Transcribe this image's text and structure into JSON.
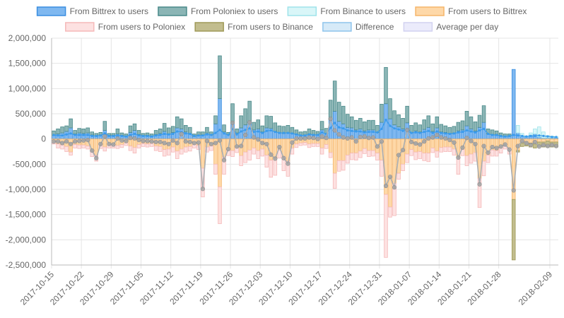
{
  "chart_data": {
    "type": "bar",
    "subtype": "stacked bar with line overlays",
    "title": "",
    "xlabel": "",
    "ylabel": "",
    "ylim": [
      -2500000,
      2000000
    ],
    "y_ticks": [
      "2,000,000",
      "1,500,000",
      "1,000,000",
      "500,000",
      "0",
      "-500,000",
      "-1,000,000",
      "-1,500,000",
      "-2,000,000",
      "-2,500,000"
    ],
    "y_tick_values": [
      2000000,
      1500000,
      1000000,
      500000,
      0,
      -500000,
      -1000000,
      -1500000,
      -2000000,
      -2500000
    ],
    "x_tick_labels": [
      "2017-10-15",
      "2017-10-22",
      "2017-10-29",
      "2017-11-05",
      "2017-11-12",
      "2017-11-19",
      "2017-11-26",
      "2017-12-03",
      "2017-12-10",
      "2017-12-17",
      "2017-12-24",
      "2017-12-31",
      "2018-01-07",
      "2018-01-14",
      "2018-01-21",
      "2018-01-28",
      "2018-02-09"
    ],
    "x_tick_day_index": [
      0,
      7,
      14,
      21,
      28,
      35,
      42,
      49,
      56,
      63,
      70,
      77,
      84,
      91,
      98,
      105,
      117
    ],
    "grid": true,
    "legend_position": "top",
    "legend": [
      {
        "label": "From Bittrex to users",
        "fill": "#7fb8f0",
        "stroke": "#3a8ee0"
      },
      {
        "label": "From Poloniex to users",
        "fill": "#8bb5b5",
        "stroke": "#4a8a8a"
      },
      {
        "label": "From Binance to users",
        "fill": "#d9f6f8",
        "stroke": "#9fe3ea"
      },
      {
        "label": "From users to Bittrex",
        "fill": "#fed8a8",
        "stroke": "#f5b56a"
      },
      {
        "label": "From users to Poloniex",
        "fill": "#fde1e1",
        "stroke": "#f5b9b9"
      },
      {
        "label": "From users to Binance",
        "fill": "#c2bd8e",
        "stroke": "#a09a58"
      },
      {
        "label": "Difference",
        "fill": "#d6eaf8",
        "stroke": "#8ec4ec"
      },
      {
        "label": "Average per day",
        "fill": "#ebebfb",
        "stroke": "#d2d2f0"
      }
    ],
    "colors": {
      "bittrex_out": "#5aa7ee",
      "poloniex_out": "#68a3a3",
      "binance_out": "#c9f0f4",
      "bittrex_in": "#fdcf94",
      "poloniex_in": "#fbd3d3",
      "binance_in": "#9d9a5e",
      "difference_line": "#a9aeb2",
      "difference_point": "#a3a3a3",
      "average_line": "#3a9bec",
      "grid": "#e5e5e5",
      "axis": "#bbbbbb"
    },
    "days": 119,
    "series": [
      {
        "name": "From Bittrex to users",
        "values": [
          70000,
          100000,
          120000,
          150000,
          220000,
          100000,
          120000,
          110000,
          120000,
          80000,
          60000,
          80000,
          170000,
          70000,
          70000,
          100000,
          70000,
          60000,
          130000,
          170000,
          90000,
          60000,
          70000,
          60000,
          90000,
          110000,
          150000,
          100000,
          130000,
          220000,
          200000,
          140000,
          110000,
          50000,
          70000,
          80000,
          120000,
          80000,
          300000,
          800000,
          140000,
          90000,
          320000,
          120000,
          220000,
          280000,
          350000,
          180000,
          200000,
          140000,
          220000,
          210000,
          150000,
          120000,
          110000,
          120000,
          110000,
          90000,
          70000,
          80000,
          100000,
          90000,
          80000,
          180000,
          110000,
          380000,
          550000,
          350000,
          300000,
          230000,
          220000,
          180000,
          200000,
          160000,
          180000,
          180000,
          130000,
          330000,
          700000,
          400000,
          280000,
          240000,
          200000,
          320000,
          130000,
          160000,
          140000,
          190000,
          230000,
          150000,
          220000,
          140000,
          130000,
          110000,
          120000,
          160000,
          180000,
          260000,
          200000,
          160000,
          230000,
          330000,
          100000,
          90000,
          80000,
          60000,
          50000,
          50000,
          1380000,
          120000,
          50000,
          40000,
          80000,
          100000,
          40000,
          20000,
          20000,
          20000,
          30000
        ]
      },
      {
        "name": "From Poloniex to users",
        "values": [
          90000,
          100000,
          120000,
          110000,
          180000,
          70000,
          90000,
          90000,
          100000,
          60000,
          50000,
          50000,
          180000,
          40000,
          40000,
          100000,
          50000,
          40000,
          130000,
          130000,
          80000,
          50000,
          50000,
          40000,
          80000,
          90000,
          160000,
          120000,
          120000,
          220000,
          200000,
          130000,
          120000,
          50000,
          70000,
          60000,
          110000,
          60000,
          160000,
          850000,
          140000,
          40000,
          380000,
          80000,
          240000,
          320000,
          400000,
          150000,
          180000,
          120000,
          240000,
          240000,
          170000,
          140000,
          140000,
          150000,
          120000,
          90000,
          70000,
          70000,
          100000,
          80000,
          70000,
          170000,
          100000,
          390000,
          600000,
          380000,
          350000,
          260000,
          220000,
          190000,
          210000,
          180000,
          190000,
          190000,
          140000,
          360000,
          720000,
          400000,
          280000,
          240000,
          210000,
          330000,
          140000,
          160000,
          140000,
          190000,
          230000,
          150000,
          220000,
          150000,
          130000,
          120000,
          130000,
          170000,
          180000,
          290000,
          240000,
          180000,
          240000,
          330000,
          100000,
          90000,
          80000,
          60000,
          50000,
          50000,
          0,
          0,
          0,
          0,
          0,
          0,
          0,
          0,
          0,
          0,
          0
        ]
      },
      {
        "name": "From Binance to users",
        "values": [
          0,
          0,
          0,
          0,
          0,
          0,
          0,
          0,
          0,
          0,
          0,
          0,
          0,
          0,
          0,
          0,
          0,
          0,
          0,
          0,
          0,
          0,
          0,
          0,
          0,
          0,
          0,
          0,
          0,
          0,
          0,
          0,
          0,
          0,
          0,
          0,
          0,
          0,
          0,
          0,
          0,
          0,
          0,
          0,
          0,
          0,
          0,
          0,
          0,
          0,
          0,
          0,
          0,
          0,
          0,
          0,
          0,
          0,
          0,
          0,
          0,
          0,
          0,
          0,
          0,
          0,
          0,
          0,
          0,
          0,
          0,
          0,
          0,
          0,
          0,
          0,
          0,
          0,
          0,
          0,
          0,
          0,
          0,
          0,
          0,
          0,
          0,
          0,
          0,
          0,
          0,
          0,
          0,
          0,
          0,
          0,
          0,
          0,
          0,
          0,
          0,
          0,
          0,
          0,
          0,
          0,
          0,
          0,
          0,
          150000,
          60000,
          20000,
          40000,
          100000,
          200000,
          120000,
          50000,
          40000,
          20000
        ]
      },
      {
        "name": "From users to Bittrex",
        "values": [
          -60000,
          -100000,
          -120000,
          -150000,
          -260000,
          -110000,
          -120000,
          -120000,
          -140000,
          -250000,
          -320000,
          -120000,
          -160000,
          -120000,
          -120000,
          -130000,
          -110000,
          -80000,
          -140000,
          -170000,
          -110000,
          -90000,
          -100000,
          -90000,
          -140000,
          -150000,
          -210000,
          -200000,
          -160000,
          -240000,
          -200000,
          -160000,
          -150000,
          -110000,
          -130000,
          -580000,
          -160000,
          -140000,
          -500000,
          -950000,
          -360000,
          -220000,
          -230000,
          -180000,
          -330000,
          -260000,
          -220000,
          -180000,
          -230000,
          -200000,
          -320000,
          -420000,
          -380000,
          -220000,
          -350000,
          -440000,
          -180000,
          -100000,
          -80000,
          -70000,
          -100000,
          -90000,
          -90000,
          -180000,
          -110000,
          -270000,
          -680000,
          -430000,
          -430000,
          -320000,
          -280000,
          -280000,
          -240000,
          -190000,
          -230000,
          -230000,
          -280000,
          -420000,
          -1100000,
          -1350000,
          -880000,
          -680000,
          -500000,
          -300000,
          -210000,
          -260000,
          -250000,
          -280000,
          -280000,
          -180000,
          -240000,
          -170000,
          -160000,
          -160000,
          -200000,
          -370000,
          -210000,
          -330000,
          -300000,
          -270000,
          -780000,
          -440000,
          -320000,
          -220000,
          -230000,
          -180000,
          -120000,
          -180000,
          -1200000,
          -230000,
          -80000,
          -60000,
          -80000,
          -100000,
          -60000,
          -60000,
          -40000,
          -60000,
          -60000
        ]
      },
      {
        "name": "From users to Poloniex",
        "values": [
          -40000,
          -80000,
          -80000,
          -100000,
          -60000,
          -70000,
          -70000,
          -60000,
          -60000,
          -100000,
          -120000,
          -70000,
          -80000,
          -60000,
          -60000,
          -60000,
          -60000,
          -50000,
          -90000,
          -110000,
          -70000,
          -60000,
          -60000,
          -60000,
          -90000,
          -100000,
          -130000,
          -120000,
          -100000,
          -150000,
          -100000,
          -100000,
          -90000,
          -70000,
          -80000,
          -570000,
          -100000,
          -90000,
          -200000,
          -730000,
          -340000,
          -110000,
          -120000,
          -90000,
          -200000,
          -210000,
          -200000,
          -120000,
          -160000,
          -140000,
          -240000,
          -340000,
          -340000,
          -160000,
          -280000,
          -300000,
          -120000,
          -70000,
          -50000,
          -50000,
          -70000,
          -60000,
          -60000,
          -120000,
          -80000,
          -100000,
          -300000,
          -210000,
          -190000,
          -160000,
          -130000,
          -140000,
          -130000,
          -100000,
          -120000,
          -110000,
          -140000,
          -320000,
          -1250000,
          -200000,
          -640000,
          -120000,
          -130000,
          -170000,
          -120000,
          -150000,
          -140000,
          -150000,
          -170000,
          -90000,
          -120000,
          -90000,
          -90000,
          -90000,
          -120000,
          -330000,
          -120000,
          -200000,
          -180000,
          -170000,
          -580000,
          -290000,
          -150000,
          -120000,
          -110000,
          -100000,
          -80000,
          -120000,
          0,
          0,
          0,
          0,
          0,
          0,
          0,
          0,
          0,
          0,
          0
        ]
      },
      {
        "name": "From users to Binance",
        "values": [
          0,
          0,
          0,
          0,
          0,
          0,
          0,
          0,
          0,
          0,
          0,
          0,
          0,
          0,
          0,
          0,
          0,
          0,
          0,
          0,
          0,
          0,
          0,
          0,
          0,
          0,
          0,
          0,
          0,
          0,
          0,
          0,
          0,
          0,
          0,
          0,
          0,
          0,
          0,
          0,
          0,
          0,
          0,
          0,
          0,
          0,
          0,
          0,
          0,
          0,
          0,
          0,
          0,
          0,
          0,
          0,
          0,
          0,
          0,
          0,
          0,
          0,
          0,
          0,
          0,
          0,
          0,
          0,
          0,
          0,
          0,
          0,
          0,
          0,
          0,
          0,
          0,
          0,
          0,
          0,
          0,
          0,
          0,
          0,
          0,
          0,
          0,
          0,
          0,
          0,
          0,
          0,
          0,
          0,
          0,
          0,
          0,
          0,
          0,
          0,
          0,
          0,
          0,
          0,
          0,
          0,
          0,
          0,
          -1200000,
          -30000,
          -70000,
          -80000,
          -80000,
          -80000,
          -90000,
          -100000,
          -120000,
          -100000,
          -100000
        ]
      },
      {
        "name": "Difference",
        "values": [
          -50000,
          -50000,
          -80000,
          -50000,
          -100000,
          -50000,
          -40000,
          -30000,
          -20000,
          -230000,
          -380000,
          -100000,
          50000,
          -100000,
          -110000,
          10000,
          -30000,
          -40000,
          20000,
          10000,
          -20000,
          -40000,
          -40000,
          -50000,
          -60000,
          -60000,
          -80000,
          -100000,
          -30000,
          -80000,
          100000,
          -50000,
          -60000,
          -80000,
          -70000,
          -990000,
          -40000,
          -100000,
          -80000,
          -30000,
          -420000,
          -200000,
          320000,
          -150000,
          -140000,
          80000,
          330000,
          30000,
          -10000,
          -80000,
          -100000,
          -310000,
          -390000,
          -160000,
          -380000,
          -490000,
          -70000,
          10000,
          10000,
          10000,
          30000,
          20000,
          0,
          50000,
          20000,
          400000,
          170000,
          90000,
          30000,
          10000,
          30000,
          -50000,
          40000,
          50000,
          20000,
          30000,
          -150000,
          -50000,
          -930000,
          -750000,
          -960000,
          -320000,
          -220000,
          180000,
          -60000,
          -90000,
          -110000,
          -50000,
          10000,
          30000,
          80000,
          30000,
          10000,
          -20000,
          -70000,
          -370000,
          -170000,
          20000,
          -40000,
          -100000,
          -900000,
          -140000,
          -270000,
          -160000,
          -180000,
          -150000,
          -110000,
          -210000,
          -1020000,
          -140000,
          -40000,
          -80000,
          -120000,
          -60000,
          -150000,
          -120000,
          -140000,
          -120000,
          -140000
        ]
      },
      {
        "name": "Average per day",
        "values": [
          80000,
          70000,
          70000,
          90000,
          110000,
          80000,
          80000,
          80000,
          80000,
          60000,
          60000,
          70000,
          110000,
          60000,
          60000,
          70000,
          60000,
          50000,
          80000,
          100000,
          70000,
          60000,
          60000,
          50000,
          70000,
          80000,
          100000,
          90000,
          100000,
          150000,
          140000,
          110000,
          100000,
          60000,
          70000,
          70000,
          90000,
          80000,
          120000,
          180000,
          110000,
          80000,
          200000,
          90000,
          150000,
          180000,
          210000,
          140000,
          150000,
          120000,
          160000,
          170000,
          140000,
          120000,
          120000,
          120000,
          110000,
          90000,
          70000,
          70000,
          90000,
          80000,
          80000,
          130000,
          100000,
          220000,
          320000,
          230000,
          210000,
          170000,
          160000,
          150000,
          150000,
          130000,
          140000,
          140000,
          130000,
          200000,
          380000,
          260000,
          210000,
          190000,
          160000,
          200000,
          120000,
          130000,
          120000,
          140000,
          160000,
          120000,
          150000,
          120000,
          110000,
          100000,
          110000,
          130000,
          140000,
          170000,
          150000,
          130000,
          170000,
          200000,
          100000,
          80000,
          80000,
          60000,
          50000,
          60000,
          80000,
          70000,
          60000,
          50000,
          60000,
          60000,
          70000,
          60000,
          50000,
          40000,
          40000
        ]
      }
    ]
  }
}
